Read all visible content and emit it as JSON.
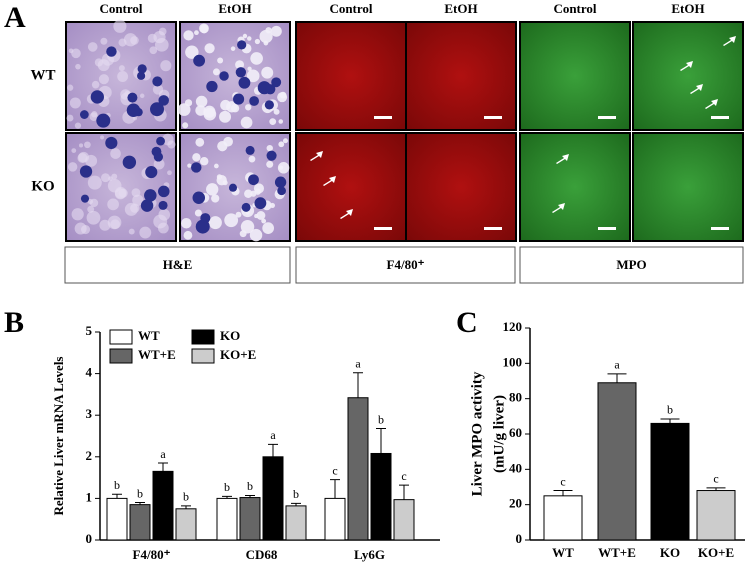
{
  "panel_a": {
    "label": "A",
    "rows": [
      "WT",
      "KO"
    ],
    "groups": [
      {
        "label": "H&E",
        "columns": [
          "Control",
          "EtOH"
        ]
      },
      {
        "label": "F4/80⁺",
        "columns": [
          "Control",
          "EtOH"
        ]
      },
      {
        "label": "MPO",
        "columns": [
          "Control",
          "EtOH"
        ]
      }
    ]
  },
  "chart_data": [
    {
      "type": "bar",
      "panel_label": "B",
      "y_label": "Relative Liver mRNA Levels",
      "categories": [
        "F4/80⁺",
        "CD68",
        "Ly6G"
      ],
      "series": [
        {
          "name": "WT",
          "color": "#ffffff",
          "values": [
            1.0,
            1.0,
            1.0
          ],
          "errors": [
            0.1,
            0.05,
            0.45
          ],
          "letters": [
            "b",
            "b",
            "c"
          ]
        },
        {
          "name": "WT+E",
          "color": "#666666",
          "values": [
            0.85,
            1.02,
            3.42
          ],
          "errors": [
            0.05,
            0.05,
            0.6
          ],
          "letters": [
            "b",
            "b",
            "a"
          ]
        },
        {
          "name": "KO",
          "color": "#000000",
          "values": [
            1.65,
            2.0,
            2.08
          ],
          "errors": [
            0.2,
            0.3,
            0.6
          ],
          "letters": [
            "a",
            "a",
            "b"
          ]
        },
        {
          "name": "KO+E",
          "color": "#cccccc",
          "values": [
            0.75,
            0.82,
            0.97
          ],
          "errors": [
            0.07,
            0.06,
            0.35
          ],
          "letters": [
            "b",
            "b",
            "c"
          ]
        }
      ],
      "ylim": [
        0,
        5
      ],
      "yticks": [
        0,
        1,
        2,
        3,
        4,
        5
      ]
    },
    {
      "type": "bar",
      "panel_label": "C",
      "y_label": [
        "Liver MPO activity",
        "(mU/g liver)"
      ],
      "categories": [
        "WT",
        "WT+E",
        "KO",
        "KO+E"
      ],
      "values": [
        25,
        89,
        66,
        28
      ],
      "errors": [
        3,
        5,
        2.5,
        1.5
      ],
      "letters": [
        "c",
        "a",
        "b",
        "c"
      ],
      "colors": [
        "#ffffff",
        "#666666",
        "#000000",
        "#cccccc"
      ],
      "ylim": [
        0,
        120
      ],
      "yticks": [
        0,
        20,
        40,
        60,
        80,
        100,
        120
      ]
    }
  ]
}
